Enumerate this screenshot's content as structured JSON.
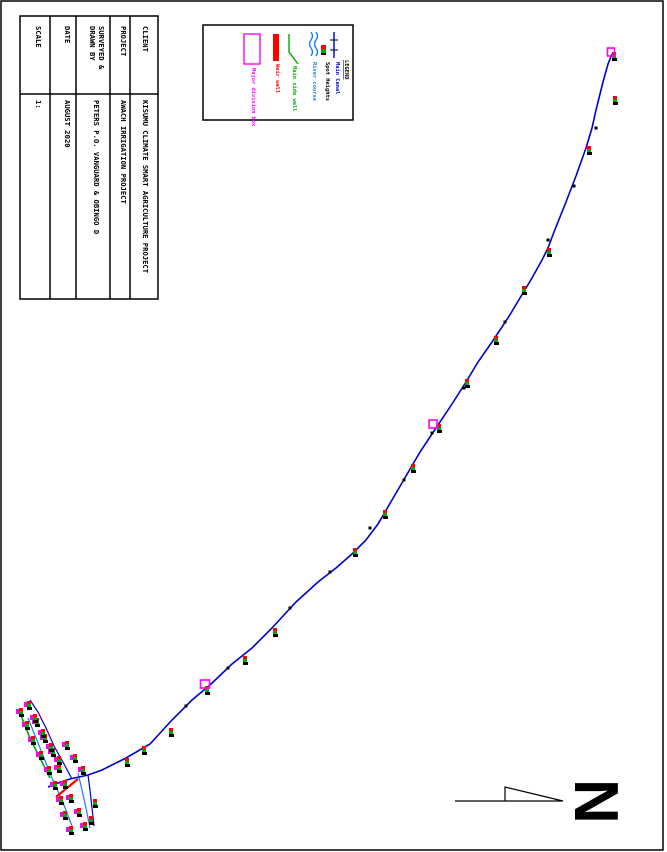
{
  "title_block": {
    "client_label": "CLIENT",
    "client_value": "KISUMU CLIMATE SMART AGRICULTURE PROJECT",
    "project_label": "PROJECT",
    "project_value": "AWACH IRRIGATION PROJECT",
    "surveyed_label_1": "SURVEYED &",
    "surveyed_label_2": "DRAWN BY",
    "surveyed_value": "PETERS P.O. VANGUARD & OBINGO D",
    "date_label": "DATE",
    "date_value": "AUGUST 2020",
    "scale_label": "SCALE",
    "scale_value": "1:"
  },
  "legend": {
    "title": "LEGEND",
    "items": [
      {
        "label": "Main Canal",
        "color": "#0000cc"
      },
      {
        "label": "Spot Heights",
        "color": "#000000"
      },
      {
        "label": "River course",
        "color": "#1e7bff"
      },
      {
        "label": "Main side wall",
        "color": "#00aa00"
      },
      {
        "label": "Weir wall",
        "color": "#ff0000"
      },
      {
        "label": "Major division box",
        "color": "#ff00ff"
      }
    ]
  },
  "north_arrow": {
    "letter": "N"
  },
  "colors": {
    "canal": "#0000cc",
    "river": "#1e7bff",
    "side_wall": "#00aa00",
    "weir": "#ff0000",
    "division_box": "#ff00ff"
  }
}
